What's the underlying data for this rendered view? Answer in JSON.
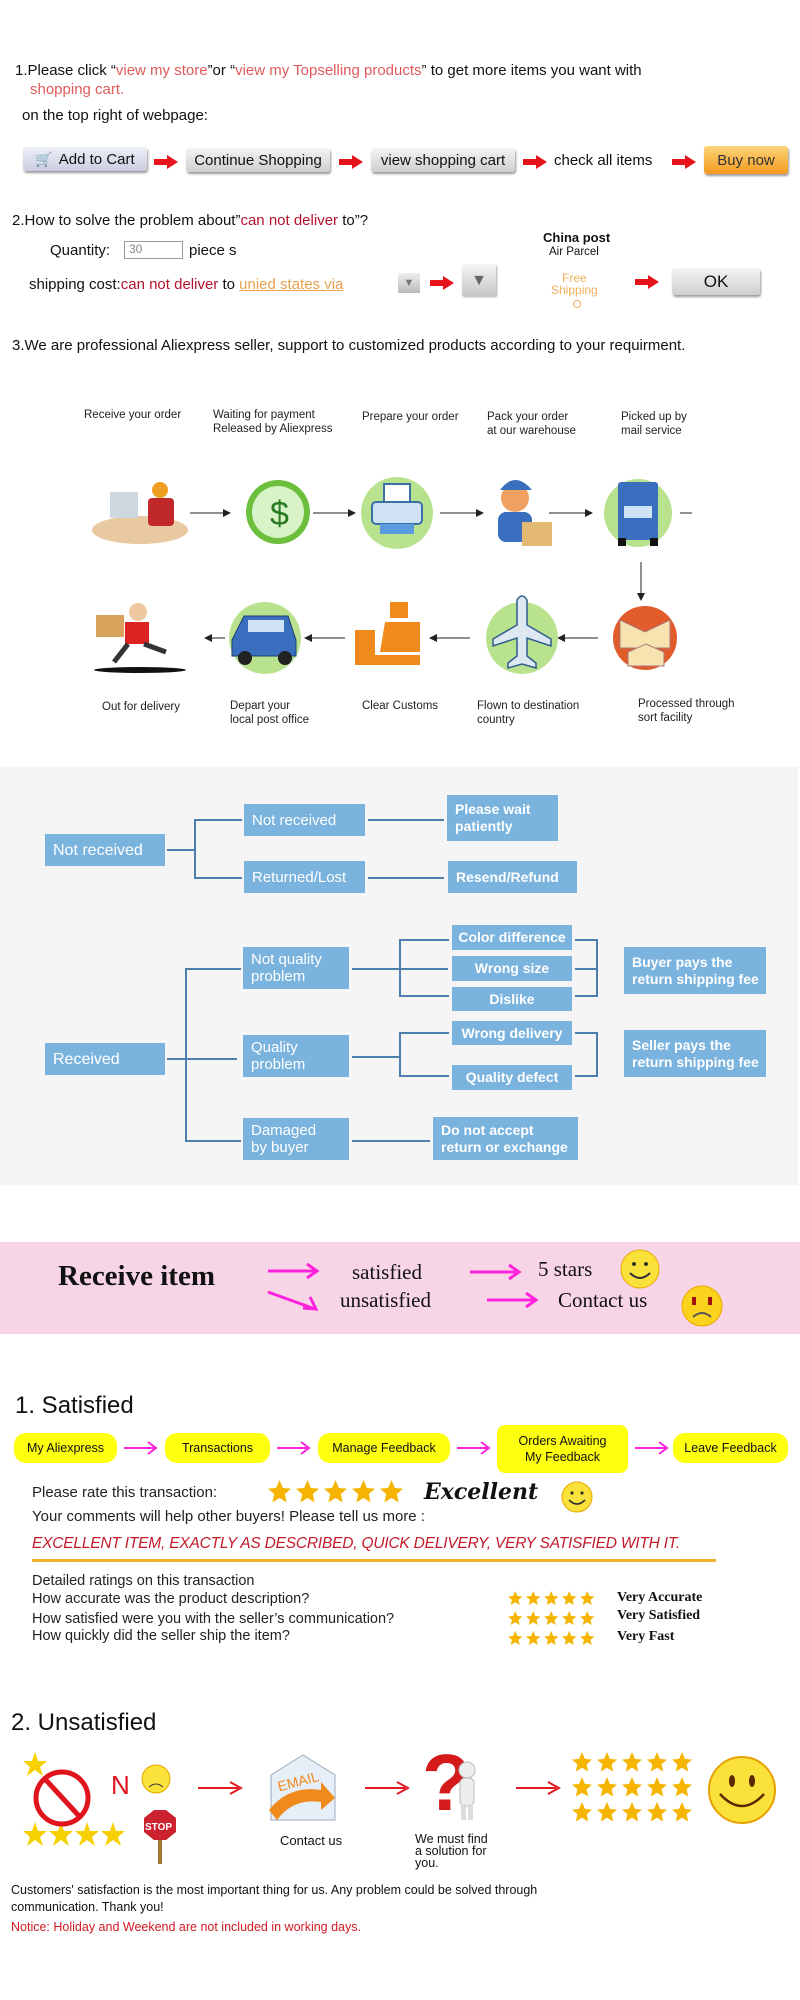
{
  "section1": {
    "line1_prefix": "1.Please click “",
    "link_store": "view my store",
    "mid": "”or “",
    "link_top": "view my Topselling products",
    "line1_suffix": "” to get more items you want with",
    "link_cart": "shopping cart.",
    "line2": "on the top right of webpage:",
    "steps": {
      "add_to_cart": "Add to Cart",
      "continue": "Continue Shopping",
      "view_cart": "view shopping cart",
      "check": "check all items",
      "buy_now": "Buy now"
    }
  },
  "section2": {
    "heading_prefix": "2.How to solve the problem about”",
    "heading_red": "can not deliver",
    "heading_suffix": " to”?",
    "quantity_label": "Quantity:",
    "quantity_value": "30",
    "quantity_unit": "piece s",
    "shipping_label": "shipping cost:",
    "shipping_red": "can not deliver",
    "shipping_to": " to ",
    "shipping_link": "unied states via",
    "china_post": "China post",
    "air_parcel": "Air Parcel",
    "free_shipping": "Free\nShipping",
    "ok": "OK"
  },
  "section3": {
    "text": "3.We are professional Aliexpress seller, support to customized products according to your requirment."
  },
  "flow": {
    "top": [
      "Receive your order",
      "Waiting for payment\nReleased by Aliexpress",
      "Prepare your order",
      "Pack your order\nat our warehouse",
      "Picked up by\nmail service"
    ],
    "bottom": [
      "Out for delivery",
      "Depart your\nlocal post office",
      "Clear Customs",
      "Flown to destination\ncountry",
      "Processed through\nsort facility"
    ]
  },
  "tree": {
    "not_received": "Not received",
    "nr_not_received": "Not received",
    "nr_returned": "Returned/Lost",
    "please_wait": "Please wait\npatiently",
    "resend": "Resend/Refund",
    "received": "Received",
    "not_quality": "Not quality\nproblem",
    "quality": "Quality\nproblem",
    "damaged": "Damaged\nby buyer",
    "color_diff": "Color difference",
    "wrong_size": "Wrong size",
    "dislike": "Dislike",
    "wrong_delivery": "Wrong delivery",
    "quality_defect": "Quality defect",
    "buyer_pays": "Buyer pays the\nreturn shipping fee",
    "seller_pays": "Seller pays the\nreturn shipping fee",
    "no_accept": "Do not accept\nreturn or exchange",
    "colors": {
      "box": "#7ab3de",
      "line": "#4c7fae",
      "background": "#f5f5f5"
    }
  },
  "banner": {
    "receive": "Receive item",
    "satisfied": "satisfied",
    "unsatisfied": "unsatisfied",
    "five_stars": "5 stars",
    "contact": "Contact us",
    "background": "#f8d5e6",
    "arrow": "#ff22dd"
  },
  "satisfied": {
    "title": "1. Satisfied",
    "steps": [
      "My Aliexpress",
      "Transactions",
      "Manage Feedback",
      "Orders Awaiting\nMy Feedback",
      "Leave Feedback"
    ],
    "rate_label": "Please rate this transaction:",
    "rating_stars": 5,
    "rating_word": "Excellent",
    "comments": "Your comments will help other buyers! Please tell us more :",
    "sample": "EXCELLENT ITEM, EXACTLY AS DESCRIBED, QUICK DELIVERY, VERY SATISFIED WITH IT.",
    "detailed": "Detailed ratings on this transaction",
    "questions": [
      "How accurate was the product description?",
      "How satisfied were you with the seller’s communication?",
      "How quickly did the seller ship the item?"
    ],
    "answers": [
      "Very Accurate",
      "Very Satisfied",
      "Very Fast"
    ]
  },
  "unsatisfied": {
    "title": "2. Unsatisfied",
    "contact": "Contact us",
    "email": "EMAIL",
    "stop": "STOP",
    "no": "N",
    "solution": "We must find\na solution for\nyou.",
    "message": "Customers' satisfaction is the most important thing for us. Any problem could be solved through\ncommunication. Thank you!",
    "notice": "Notice: Holiday and Weekend are not included in working days."
  }
}
